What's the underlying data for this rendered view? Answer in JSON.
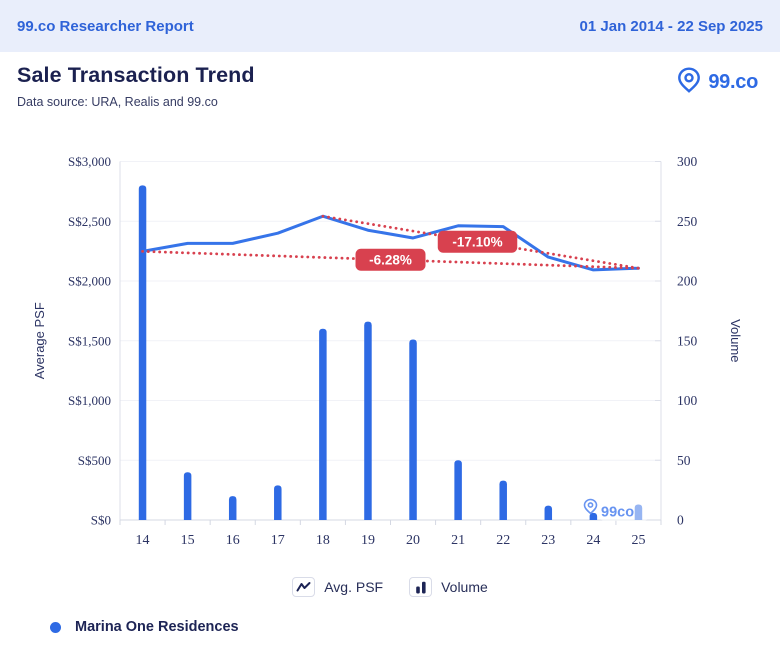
{
  "report": {
    "header_title": "99.co Researcher Report",
    "date_range": "01 Jan 2014 - 22 Sep 2025",
    "title": "Sale Transaction Trend",
    "subtitle": "Data source: URA, Realis and 99.co",
    "logo_text": "99.co",
    "watermark_text": "99co"
  },
  "chart_data": {
    "type": "bar+line combo",
    "categories": [
      "14",
      "15",
      "16",
      "17",
      "18",
      "19",
      "20",
      "21",
      "22",
      "23",
      "24",
      "25"
    ],
    "series": [
      {
        "name": "Avg. PSF",
        "type": "line",
        "axis": "left",
        "values": [
          2248,
          2315,
          2315,
          2400,
          2542,
          2425,
          2360,
          2462,
          2455,
          2200,
          2093,
          2107
        ]
      },
      {
        "name": "Volume",
        "type": "bar",
        "axis": "right",
        "values": [
          280,
          40,
          20,
          29,
          160,
          166,
          151,
          50,
          33,
          12,
          6,
          13
        ]
      }
    ],
    "left_axis": {
      "label": "Average PSF",
      "min": 0,
      "max": 3000,
      "step": 500,
      "ticks": [
        "S$3,000",
        "S$2,500",
        "S$2,000",
        "S$1,500",
        "S$1,000",
        "S$500",
        "S$0"
      ]
    },
    "right_axis": {
      "label": "Volume",
      "min": 0,
      "max": 300,
      "step": 50,
      "ticks": [
        "300",
        "250",
        "200",
        "150",
        "100",
        "50",
        "0"
      ]
    },
    "grid": true,
    "legend_position": "bottom",
    "annotations": [
      {
        "label": "-6.28%",
        "from_index": 0,
        "to_index": 11,
        "label_fraction": 0.5
      },
      {
        "label": "-17.10%",
        "from_index": 4,
        "to_index": 11,
        "label_fraction": 0.49
      }
    ],
    "colors": {
      "bar": "#2e6ae4",
      "line": "#3674e9",
      "trend": "#d8414f",
      "badge_bg": "#d8414f",
      "badge_text": "#ffffff",
      "axis_text": "#2c3464",
      "grid_line": "#f1f2f7",
      "axis_line": "#dcdfe9",
      "watermark": "#5c8cf0"
    }
  },
  "legend": {
    "items": [
      {
        "label": "Avg. PSF",
        "icon": "line-icon"
      },
      {
        "label": "Volume",
        "icon": "bar-icon"
      }
    ]
  },
  "footer": {
    "series_label": "Marina One Residences",
    "dot_color": "#2e6ae4"
  }
}
